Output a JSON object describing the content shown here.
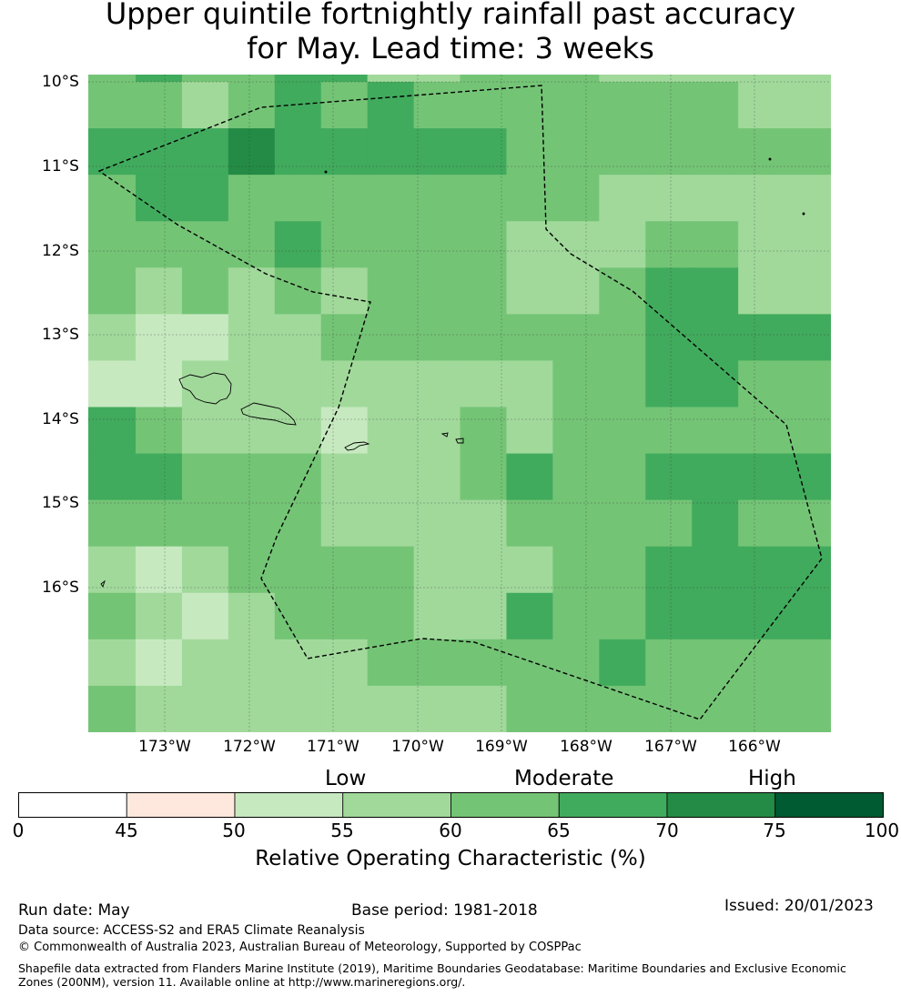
{
  "title": {
    "line1": "Upper quintile fortnightly rainfall past accuracy",
    "line2": "for May. Lead time: 3 weeks"
  },
  "map": {
    "lat_labels": [
      "10°S",
      "11°S",
      "12°S",
      "13°S",
      "14°S",
      "15°S",
      "16°S"
    ],
    "lon_labels": [
      "173°W",
      "172°W",
      "171°W",
      "170°W",
      "169°W",
      "168°W",
      "167°W",
      "166°W"
    ],
    "grid_values": [
      [
        60,
        65,
        60,
        60,
        65,
        65,
        55,
        55,
        60,
        60,
        60,
        55,
        55,
        55,
        55,
        55
      ],
      [
        60,
        60,
        55,
        60,
        65,
        60,
        65,
        60,
        60,
        60,
        60,
        60,
        60,
        60,
        55,
        55
      ],
      [
        65,
        65,
        65,
        70,
        65,
        65,
        65,
        65,
        65,
        60,
        60,
        60,
        60,
        60,
        60,
        60
      ],
      [
        60,
        65,
        65,
        60,
        60,
        60,
        60,
        60,
        60,
        60,
        60,
        55,
        55,
        55,
        55,
        55
      ],
      [
        60,
        60,
        60,
        60,
        65,
        60,
        60,
        60,
        60,
        55,
        55,
        55,
        60,
        60,
        55,
        55
      ],
      [
        60,
        55,
        60,
        55,
        60,
        55,
        60,
        60,
        60,
        55,
        55,
        60,
        65,
        65,
        55,
        55
      ],
      [
        55,
        50,
        50,
        55,
        55,
        60,
        60,
        60,
        60,
        60,
        60,
        60,
        65,
        65,
        65,
        65
      ],
      [
        50,
        50,
        55,
        55,
        55,
        55,
        55,
        55,
        55,
        55,
        60,
        60,
        65,
        65,
        60,
        60
      ],
      [
        65,
        60,
        55,
        55,
        55,
        50,
        55,
        55,
        60,
        55,
        60,
        60,
        60,
        60,
        60,
        60
      ],
      [
        65,
        65,
        60,
        60,
        60,
        55,
        55,
        55,
        60,
        65,
        60,
        60,
        65,
        65,
        65,
        65
      ],
      [
        60,
        60,
        60,
        60,
        60,
        55,
        55,
        55,
        55,
        60,
        60,
        60,
        60,
        65,
        60,
        60
      ],
      [
        55,
        50,
        55,
        60,
        60,
        60,
        60,
        55,
        55,
        55,
        60,
        60,
        65,
        65,
        65,
        65
      ],
      [
        60,
        55,
        50,
        55,
        60,
        60,
        60,
        55,
        55,
        65,
        60,
        60,
        65,
        65,
        65,
        65
      ],
      [
        55,
        50,
        55,
        55,
        55,
        55,
        60,
        60,
        60,
        60,
        60,
        65,
        60,
        60,
        60,
        60
      ],
      [
        60,
        55,
        55,
        55,
        55,
        55,
        55,
        55,
        55,
        60,
        60,
        60,
        60,
        60,
        60,
        60
      ]
    ],
    "colors": {
      "50": "#c7e9c0",
      "55": "#a1d99b",
      "60": "#74c476",
      "65": "#41ab5d",
      "70": "#238b45"
    }
  },
  "colorbar": {
    "category_labels": {
      "low": "Low",
      "moderate": "Moderate",
      "high": "High"
    },
    "ticks": [
      "0",
      "45",
      "50",
      "55",
      "60",
      "65",
      "70",
      "75",
      "100"
    ],
    "colors": [
      "#ffffff",
      "#fee8de",
      "#c7e9c0",
      "#a1d99b",
      "#74c476",
      "#41ab5d",
      "#238b45",
      "#005a32"
    ],
    "label": "Relative Operating Characteristic (%)"
  },
  "footer": {
    "run_date": "Run date: May",
    "base_period": "Base period: 1981-2018",
    "issued": "Issued: 20/01/2023",
    "data_source": "Data source: ACCESS-S2 and ERA5 Climate Reanalysis",
    "copyright": "© Commonwealth of Australia 2023, Australian Bureau of Meteorology, Supported by COSPPac",
    "shapefile": "Shapefile data extracted from Flanders Marine Institute (2019), Maritime Boundaries Geodatabase: Maritime Boundaries and Exclusive Economic Zones (200NM), version 11. Available online at http://www.marineregions.org/."
  }
}
